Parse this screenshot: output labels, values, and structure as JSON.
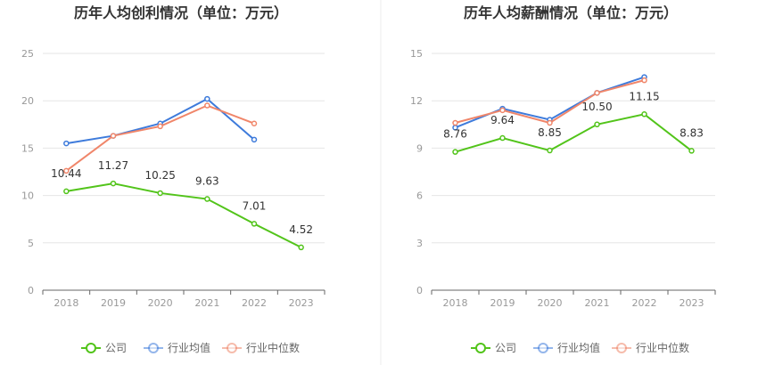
{
  "colors": {
    "company": "#52c41a",
    "industry_avg": "#3e7bdb",
    "industry_median": "#f0866a",
    "grid": "#e6e6e6",
    "axis": "#666666",
    "divider": "#eeeeee"
  },
  "legend": {
    "company": "公司",
    "industry_avg": "行业均值",
    "industry_median": "行业中位数"
  },
  "chart_data": [
    {
      "type": "line",
      "title": "历年人均创利情况（单位：万元）",
      "xlabel": "",
      "ylabel": "",
      "x": [
        "2018",
        "2019",
        "2020",
        "2021",
        "2022",
        "2023"
      ],
      "ylim": [
        0,
        25
      ],
      "yticks": [
        "0",
        "5",
        "10",
        "15",
        "20",
        "25"
      ],
      "grid": true,
      "legend_position": "bottom",
      "series": [
        {
          "key": "company",
          "name": "公司",
          "values": [
            10.44,
            11.27,
            10.25,
            9.63,
            7.01,
            4.52
          ],
          "labels": [
            "10.44",
            "11.27",
            "10.25",
            "9.63",
            "7.01",
            "4.52"
          ]
        },
        {
          "key": "industry_avg",
          "name": "行业均值",
          "values": [
            15.5,
            16.3,
            17.6,
            20.2,
            15.9,
            null
          ]
        },
        {
          "key": "industry_median",
          "name": "行业中位数",
          "values": [
            12.6,
            16.3,
            17.3,
            19.5,
            17.6,
            null
          ]
        }
      ]
    },
    {
      "type": "line",
      "title": "历年人均薪酬情况（单位：万元）",
      "xlabel": "",
      "ylabel": "",
      "x": [
        "2018",
        "2019",
        "2020",
        "2021",
        "2022",
        "2023"
      ],
      "ylim": [
        0,
        15
      ],
      "yticks": [
        "0",
        "3",
        "6",
        "9",
        "12",
        "15"
      ],
      "grid": true,
      "legend_position": "bottom",
      "series": [
        {
          "key": "company",
          "name": "公司",
          "values": [
            8.76,
            9.64,
            8.85,
            10.5,
            11.15,
            8.83
          ],
          "labels": [
            "8.76",
            "9.64",
            "8.85",
            "10.50",
            "11.15",
            "8.83"
          ]
        },
        {
          "key": "industry_avg",
          "name": "行业均值",
          "values": [
            10.3,
            11.5,
            10.8,
            12.5,
            13.5,
            null
          ]
        },
        {
          "key": "industry_median",
          "name": "行业中位数",
          "values": [
            10.6,
            11.4,
            10.6,
            12.5,
            13.3,
            null
          ]
        }
      ]
    }
  ]
}
